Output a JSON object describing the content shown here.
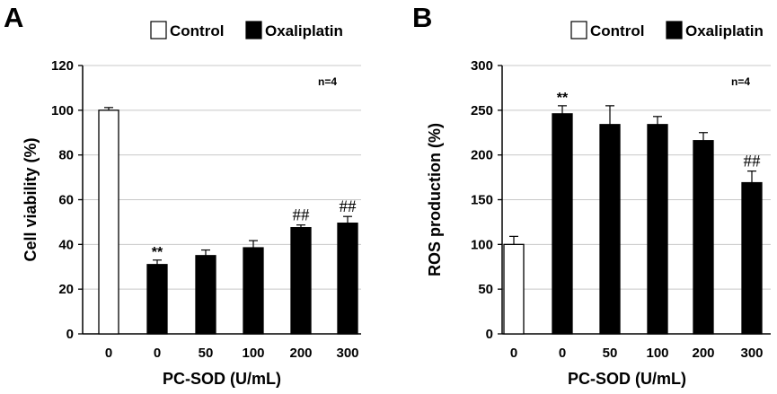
{
  "chart_data": [
    {
      "panel": "A",
      "type": "bar",
      "legend": [
        "Control",
        "Oxaliplatin"
      ],
      "n_label": "n=4",
      "xlabel": "PC-SOD (U/mL)",
      "ylabel": "Cell viability (%)",
      "ylim": [
        0,
        120
      ],
      "yticks": [
        "0",
        "20",
        "40",
        "60",
        "80",
        "100",
        "120"
      ],
      "gridlines": true,
      "categories": [
        "0",
        "0",
        "50",
        "100",
        "200",
        "300"
      ],
      "groups": [
        "Control",
        "Oxaliplatin",
        "Oxaliplatin",
        "Oxaliplatin",
        "Oxaliplatin",
        "Oxaliplatin"
      ],
      "values": [
        100,
        31,
        35,
        38.5,
        47.5,
        49.5
      ],
      "errors": [
        1.2,
        2,
        2.5,
        3.2,
        1.2,
        3
      ],
      "annotations": [
        "",
        "**",
        "",
        "",
        "##",
        "##"
      ]
    },
    {
      "panel": "B",
      "type": "bar",
      "legend": [
        "Control",
        "Oxaliplatin"
      ],
      "n_label": "n=4",
      "xlabel": "PC-SOD (U/mL)",
      "ylabel": "ROS production (%)",
      "ylim": [
        0,
        300
      ],
      "yticks": [
        "0",
        "50",
        "100",
        "150",
        "200",
        "250",
        "300"
      ],
      "gridlines": true,
      "categories": [
        "0",
        "0",
        "50",
        "100",
        "200",
        "300"
      ],
      "groups": [
        "Control",
        "Oxaliplatin",
        "Oxaliplatin",
        "Oxaliplatin",
        "Oxaliplatin",
        "Oxaliplatin"
      ],
      "values": [
        100,
        246,
        234,
        234,
        216,
        169
      ],
      "errors": [
        9,
        9,
        21,
        9,
        9,
        13
      ],
      "annotations": [
        "",
        "**",
        "",
        "",
        "",
        "##"
      ]
    }
  ],
  "colors": {
    "control_fill": "#ffffff",
    "treated_fill": "#000000",
    "grid": "#c8c8c8",
    "axis": "#000000"
  }
}
